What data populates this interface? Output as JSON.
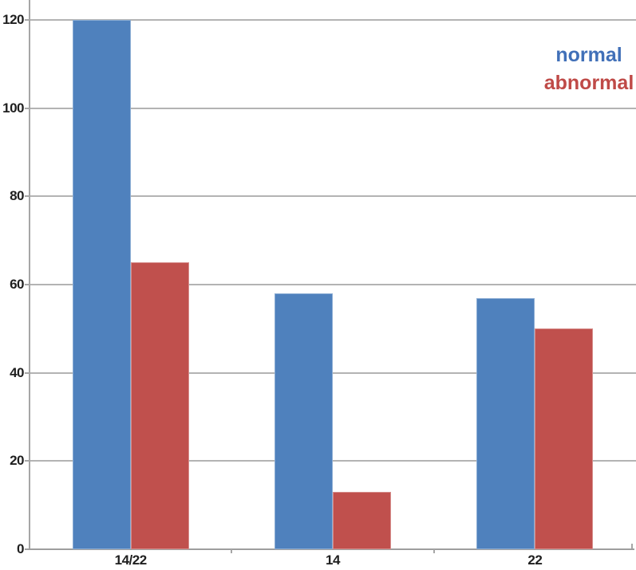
{
  "chart_data": {
    "type": "bar",
    "title": "",
    "categories": [
      "14/22",
      "14",
      "22"
    ],
    "series": [
      {
        "name": "normal",
        "color": "#4f81bd",
        "legend_color": "#4170b8",
        "values": [
          120,
          58,
          57
        ]
      },
      {
        "name": "abnormal",
        "color": "#c0504d",
        "legend_color": "#bf4a47",
        "values": [
          65,
          13,
          50
        ]
      }
    ],
    "y_ticks": [
      0,
      20,
      40,
      60,
      80,
      100,
      120
    ],
    "ylim": [
      0,
      120
    ],
    "grid": true,
    "legend_position": "top-right"
  },
  "colors": {
    "background": "#ffffff",
    "gridline": "#b3b3b3",
    "axis": "#a6a6a6",
    "tick_label": "#1f1f1f"
  }
}
